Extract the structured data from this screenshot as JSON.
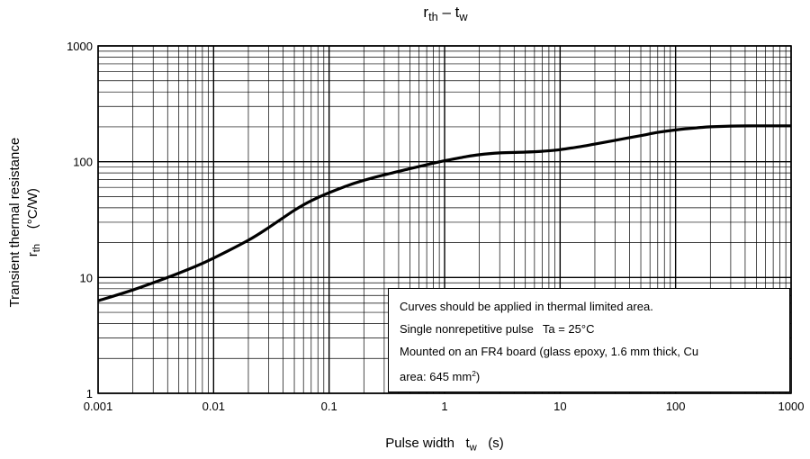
{
  "chart_data": {
    "type": "line",
    "title": {
      "main": "r",
      "main_sub": "th",
      "sep": " – ",
      "second": "t",
      "second_sub": "w"
    },
    "xlabel": {
      "text": "Pulse width",
      "sym": "t",
      "sym_sub": "w",
      "unit": "(s)"
    },
    "ylabel": {
      "line1": "Transient thermal resistance",
      "sym": "r",
      "sym_sub": "th",
      "unit": "(°C/W)"
    },
    "x_scale": "log",
    "y_scale": "log",
    "xlim": [
      0.001,
      1000
    ],
    "ylim": [
      1,
      1000
    ],
    "x_ticks": [
      0.001,
      0.01,
      0.1,
      1,
      10,
      100,
      1000
    ],
    "x_tick_labels": [
      "0.001",
      "0.01",
      "0.1",
      "1",
      "10",
      "100",
      "1000"
    ],
    "y_ticks": [
      1,
      10,
      100,
      1000
    ],
    "y_tick_labels": [
      "1",
      "10",
      "100",
      "1000"
    ],
    "grid": true,
    "series": [
      {
        "color": "#000000",
        "x": [
          0.001,
          0.002,
          0.004,
          0.007,
          0.01,
          0.02,
          0.03,
          0.05,
          0.07,
          0.1,
          0.15,
          0.2,
          0.3,
          0.5,
          0.7,
          1,
          1.5,
          2,
          3,
          5,
          7,
          10,
          15,
          20,
          30,
          50,
          70,
          100,
          150,
          200,
          300,
          500,
          1000
        ],
        "y": [
          6.3,
          7.8,
          10,
          12.5,
          14.7,
          21,
          27,
          38,
          46,
          54,
          63,
          69,
          77,
          87,
          94,
          102,
          110,
          115,
          119,
          121,
          123,
          127,
          135,
          142,
          153,
          168,
          179,
          188,
          196,
          200,
          203,
          204,
          204
        ]
      }
    ],
    "annotation": {
      "line1": "Curves should be applied in thermal limited area.",
      "line2a": "Single nonrepetitive pulse",
      "line2b": "Ta = 25°C",
      "line3": "Mounted on an FR4 board (glass epoxy, 1.6 mm thick, Cu",
      "line4a": "area: 645 mm",
      "line4sup": "2",
      "line4b": ")"
    }
  }
}
